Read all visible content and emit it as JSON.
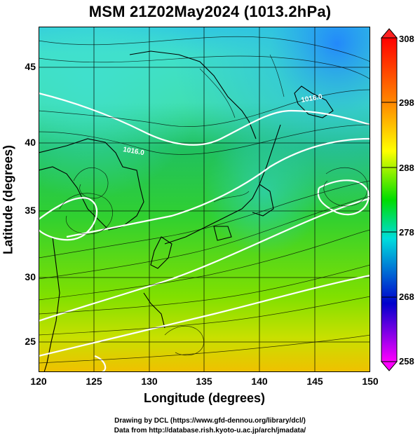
{
  "title": "MSM 21Z02May2024 (1013.2hPa)",
  "axes": {
    "xlabel": "Longitude (degrees)",
    "ylabel": "Latitude  (degrees)",
    "x_ticks": [
      "120",
      "125",
      "130",
      "135",
      "140",
      "145",
      "150"
    ],
    "y_ticks": [
      "25",
      "30",
      "35",
      "40",
      "45"
    ]
  },
  "colorbar": {
    "labels": [
      "308",
      "298",
      "288",
      "278",
      "268",
      "258"
    ],
    "colors": [
      "#ff0000",
      "#ff8800",
      "#ffff00",
      "#00dd00",
      "#00dddd",
      "#0000cc",
      "#ff00ff"
    ]
  },
  "contour_labels": [
    "1016.0",
    "1016.0"
  ],
  "credits": {
    "line1": "Drawing by DCL (https://www.gfd-dennou.org/library/dcl/)",
    "line2": "Data from http://database.rish.kyoto-u.ac.jp/arch/jmadata/"
  },
  "colors": {
    "land_outline": "#000000",
    "contour": "#ffffff",
    "frame": "#000000"
  }
}
